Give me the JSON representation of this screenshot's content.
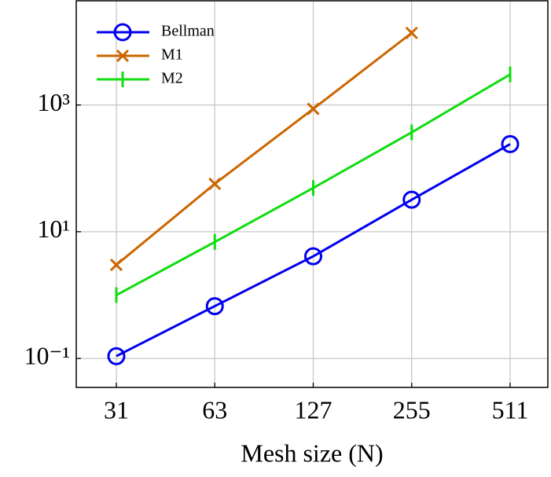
{
  "chart_data": {
    "type": "line",
    "x_label": "Mesh size (N)",
    "categories": [
      "31",
      "63",
      "127",
      "255",
      "511"
    ],
    "log_y": true,
    "grid": true,
    "legend_position": "upper-left",
    "ylim": [
      0.035,
      44000
    ],
    "yticks": [
      {
        "value": 0.1,
        "label": "10⁻¹"
      },
      {
        "value": 10,
        "label": "10¹"
      },
      {
        "value": 1000,
        "label": "10³"
      }
    ],
    "series": [
      {
        "name": "Bellman",
        "color": "#0000ee",
        "marker": "circle",
        "values": [
          0.109,
          0.67,
          4.1,
          32,
          241
        ]
      },
      {
        "name": "M1",
        "color": "#cc6600",
        "marker": "x",
        "values": [
          3.0,
          57,
          867,
          13700,
          null
        ]
      },
      {
        "name": "M2",
        "color": "#11dd11",
        "marker": "bar",
        "values": [
          1.0,
          6.9,
          49,
          370,
          3030
        ]
      }
    ]
  }
}
